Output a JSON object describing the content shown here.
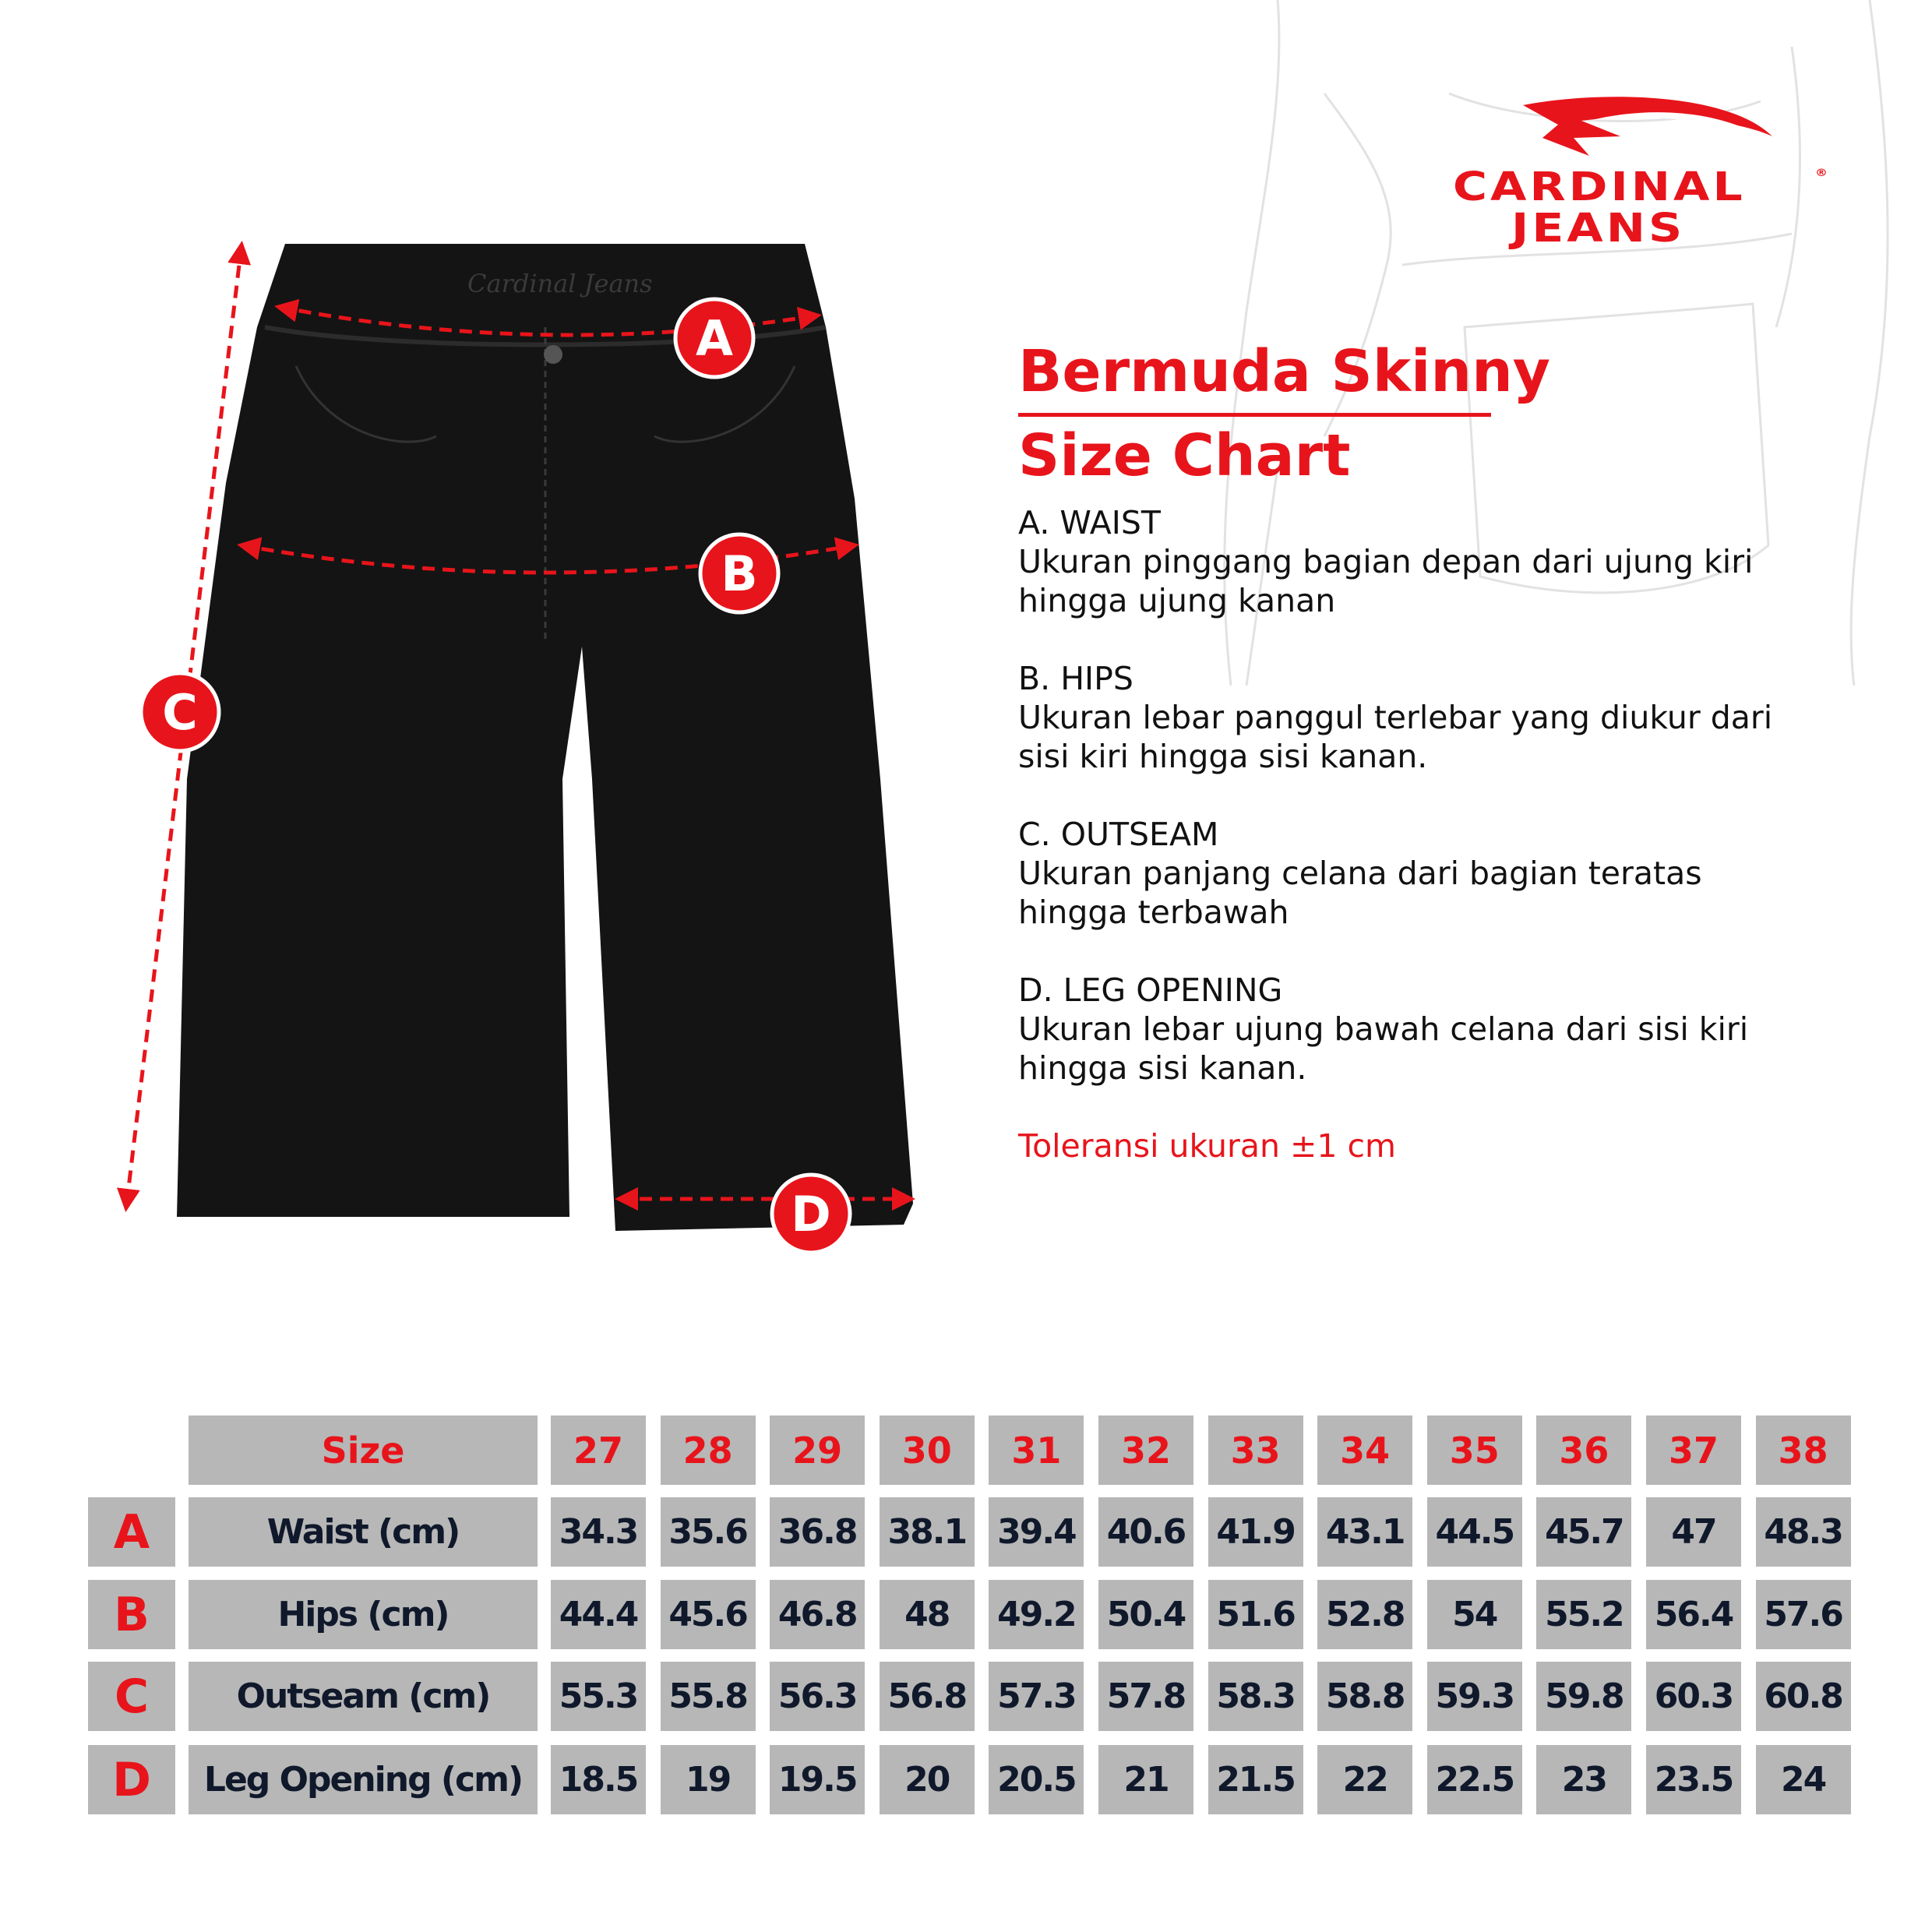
{
  "brand": {
    "line1": "CARDINAL",
    "line2": "JEANS",
    "registered": "®",
    "color": "#e8141b"
  },
  "jeans_print": "Cardinal Jeans",
  "title": "Bermuda Skinny",
  "subtitle": "Size Chart",
  "markers": [
    "A",
    "B",
    "C",
    "D"
  ],
  "sections": [
    {
      "heading": "A. WAIST",
      "text": "Ukuran pinggang bagian depan dari ujung kiri\nhingga ujung kanan"
    },
    {
      "heading": "B. HIPS",
      "text": "Ukuran lebar panggul terlebar yang diukur dari\nsisi kiri hingga sisi kanan."
    },
    {
      "heading": "C. OUTSEAM",
      "text": "Ukuran panjang celana dari bagian teratas\nhingga terbawah"
    },
    {
      "heading": "D. LEG OPENING",
      "text": "Ukuran lebar ujung bawah celana dari sisi kiri\nhingga sisi kanan."
    }
  ],
  "tolerance": "Toleransi ukuran ±1 cm",
  "table": {
    "size_label": "Size",
    "sizes": [
      "27",
      "28",
      "29",
      "30",
      "31",
      "32",
      "33",
      "34",
      "35",
      "36",
      "37",
      "38"
    ],
    "rows": [
      {
        "letter": "A",
        "label": "Waist (cm)",
        "values": [
          "34.3",
          "35.6",
          "36.8",
          "38.1",
          "39.4",
          "40.6",
          "41.9",
          "43.1",
          "44.5",
          "45.7",
          "47",
          "48.3"
        ]
      },
      {
        "letter": "B",
        "label": "Hips (cm)",
        "values": [
          "44.4",
          "45.6",
          "46.8",
          "48",
          "49.2",
          "50.4",
          "51.6",
          "52.8",
          "54",
          "55.2",
          "56.4",
          "57.6"
        ]
      },
      {
        "letter": "C",
        "label": "Outseam (cm)",
        "values": [
          "55.3",
          "55.8",
          "56.3",
          "56.8",
          "57.3",
          "57.8",
          "58.3",
          "58.8",
          "59.3",
          "59.8",
          "60.3",
          "60.8"
        ]
      },
      {
        "letter": "D",
        "label": "Leg Opening (cm)",
        "values": [
          "18.5",
          "19",
          "19.5",
          "20",
          "20.5",
          "21",
          "21.5",
          "22",
          "22.5",
          "23",
          "23.5",
          "24"
        ]
      }
    ]
  }
}
